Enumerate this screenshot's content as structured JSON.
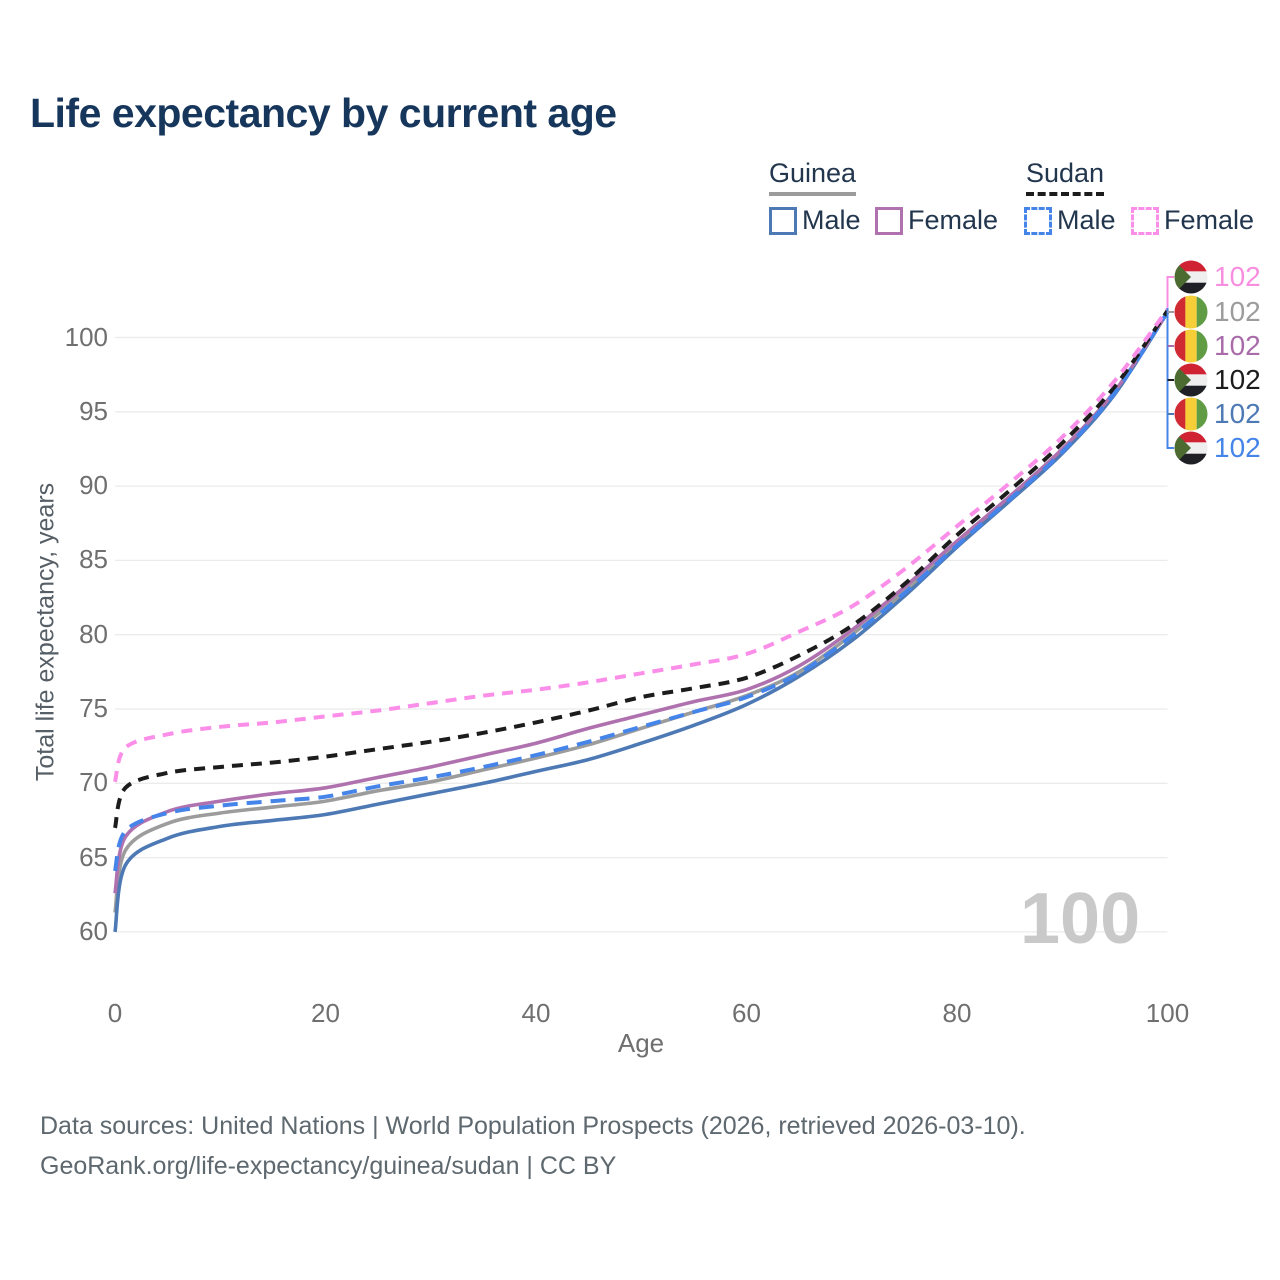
{
  "title": "Life expectancy by current age",
  "legend": {
    "groups": [
      {
        "name": "Guinea",
        "line_style": "solid",
        "underline_color": "#9c9c9c",
        "items": [
          {
            "label": "Male",
            "color": "#4d79b5",
            "dashed": false
          },
          {
            "label": "Female",
            "color": "#af72af",
            "dashed": false
          }
        ]
      },
      {
        "name": "Sudan",
        "line_style": "dashed",
        "underline_color": "#1c1c1c",
        "items": [
          {
            "label": "Male",
            "color": "#4584e8",
            "dashed": true
          },
          {
            "label": "Female",
            "color": "#fb8ee8",
            "dashed": true
          }
        ]
      }
    ]
  },
  "watermark": "100",
  "footer": {
    "line1": "Data sources: United Nations | World Population Prospects (2026, retrieved 2026-03-10).",
    "line2": "GeoRank.org/life-expectancy/guinea/sudan | CC BY"
  },
  "end_labels": [
    {
      "value": "102",
      "flag": "sudan",
      "color": "#f78ee0",
      "series": "Sudan Female"
    },
    {
      "value": "102",
      "flag": "guinea",
      "color": "#9c9c9c",
      "series": "Guinea Both sexes"
    },
    {
      "value": "102",
      "flag": "guinea",
      "color": "#a96ba9",
      "series": "Guinea Female"
    },
    {
      "value": "102",
      "flag": "sudan",
      "color": "#1c1c1c",
      "series": "Sudan Both sexes"
    },
    {
      "value": "102",
      "flag": "guinea",
      "color": "#4d79b5",
      "series": "Guinea Male"
    },
    {
      "value": "102",
      "flag": "sudan",
      "color": "#4584e8",
      "series": "Sudan Male"
    }
  ],
  "chart_data": {
    "type": "line",
    "title": "Life expectancy by current age",
    "xlabel": "Age",
    "ylabel": "Total life expectancy, years",
    "x_ticks": [
      0,
      20,
      40,
      60,
      80,
      100
    ],
    "y_ticks": [
      60,
      65,
      70,
      75,
      80,
      85,
      90,
      95,
      100
    ],
    "xlim": [
      0,
      100
    ],
    "ylim": [
      58.5,
      103
    ],
    "grid": "horizontal",
    "x": [
      0,
      1,
      5,
      10,
      15,
      20,
      25,
      30,
      35,
      40,
      45,
      50,
      55,
      60,
      65,
      70,
      75,
      80,
      85,
      90,
      95,
      100
    ],
    "series": [
      {
        "name": "Guinea Both sexes",
        "country": "Guinea",
        "sex": "Both",
        "color": "#9c9c9c",
        "dash": "solid",
        "values": [
          61.3,
          65.5,
          67.3,
          68.0,
          68.4,
          68.8,
          69.5,
          70.1,
          70.9,
          71.7,
          72.6,
          73.7,
          74.8,
          75.9,
          77.5,
          80.0,
          82.9,
          86.1,
          89.2,
          92.4,
          96.3,
          101.7
        ]
      },
      {
        "name": "Guinea Male",
        "country": "Guinea",
        "sex": "Male",
        "color": "#4d79b5",
        "dash": "solid",
        "values": [
          60.0,
          64.5,
          66.3,
          67.1,
          67.5,
          67.9,
          68.6,
          69.3,
          70.0,
          70.8,
          71.6,
          72.7,
          73.9,
          75.3,
          77.2,
          79.6,
          82.6,
          85.9,
          89.0,
          92.2,
          96.2,
          101.7
        ]
      },
      {
        "name": "Guinea Female",
        "country": "Guinea",
        "sex": "Female",
        "color": "#af72af",
        "dash": "solid",
        "values": [
          62.6,
          66.4,
          68.1,
          68.8,
          69.3,
          69.7,
          70.4,
          71.1,
          71.9,
          72.7,
          73.7,
          74.6,
          75.5,
          76.3,
          77.9,
          80.3,
          83.2,
          86.3,
          89.3,
          92.5,
          96.4,
          101.7
        ]
      },
      {
        "name": "Sudan Male",
        "country": "Sudan",
        "sex": "Male",
        "color": "#4584e8",
        "dash": "dashed",
        "values": [
          64.1,
          66.8,
          68.0,
          68.5,
          68.8,
          69.1,
          69.8,
          70.4,
          71.1,
          71.9,
          72.8,
          73.8,
          74.8,
          75.8,
          77.4,
          79.9,
          82.8,
          86.0,
          89.1,
          92.3,
          96.3,
          101.7
        ]
      },
      {
        "name": "Sudan Both sexes",
        "country": "Sudan",
        "sex": "Both",
        "color": "#1c1c1c",
        "dash": "dashed",
        "values": [
          67.0,
          69.7,
          70.7,
          71.1,
          71.4,
          71.8,
          72.3,
          72.8,
          73.4,
          74.1,
          74.9,
          75.8,
          76.4,
          77.1,
          78.6,
          80.6,
          83.4,
          86.7,
          89.7,
          92.9,
          96.7,
          101.8
        ]
      },
      {
        "name": "Sudan Female",
        "country": "Sudan",
        "sex": "Female",
        "color": "#fb8ee8",
        "dash": "dashed",
        "values": [
          70.1,
          72.4,
          73.3,
          73.8,
          74.1,
          74.5,
          74.9,
          75.4,
          75.9,
          76.3,
          76.8,
          77.4,
          78.0,
          78.7,
          80.2,
          81.9,
          84.4,
          87.3,
          90.2,
          93.3,
          97.1,
          101.9
        ]
      }
    ]
  }
}
